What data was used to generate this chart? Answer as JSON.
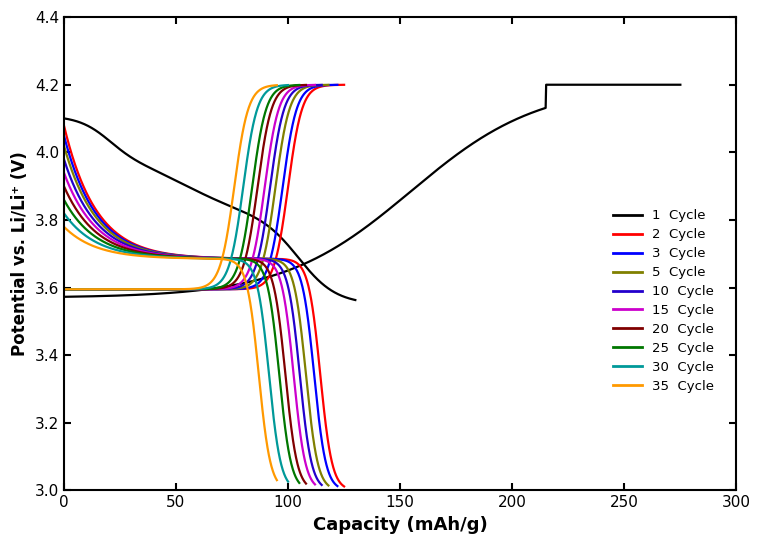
{
  "title": "",
  "xlabel": "Capacity (mAh/g)",
  "ylabel": "Potential vs. Li/Li⁺ (V)",
  "xlim": [
    0,
    300
  ],
  "ylim": [
    3.0,
    4.4
  ],
  "xticks": [
    0,
    50,
    100,
    150,
    200,
    250,
    300
  ],
  "yticks": [
    3.0,
    3.2,
    3.4,
    3.6,
    3.8,
    4.0,
    4.2,
    4.4
  ],
  "cycles": [
    1,
    2,
    3,
    5,
    10,
    15,
    20,
    25,
    30,
    35
  ],
  "colors": [
    "#000000",
    "#ff0000",
    "#0000ff",
    "#808000",
    "#2200cc",
    "#cc00cc",
    "#800000",
    "#007700",
    "#009999",
    "#ff9900"
  ],
  "legend_labels": [
    "1  Cycle",
    "2  Cycle",
    "3  Cycle",
    "5  Cycle",
    "10  Cycle",
    "15  Cycle",
    "20  Cycle",
    "25  Cycle",
    "30  Cycle",
    "35  Cycle"
  ],
  "background_color": "#ffffff",
  "linewidth": 1.5,
  "discharge_caps": [
    130,
    125,
    122,
    118,
    115,
    112,
    108,
    105,
    100,
    95
  ],
  "charge_caps": [
    130,
    125,
    122,
    118,
    115,
    112,
    108,
    105,
    100,
    95
  ],
  "discharge_v_start": [
    4.11,
    4.08,
    4.05,
    4.02,
    3.98,
    3.94,
    3.9,
    3.86,
    3.82,
    3.78
  ],
  "cycle1_charge_cap": 275,
  "cycle1_charge_flat_start": 215
}
